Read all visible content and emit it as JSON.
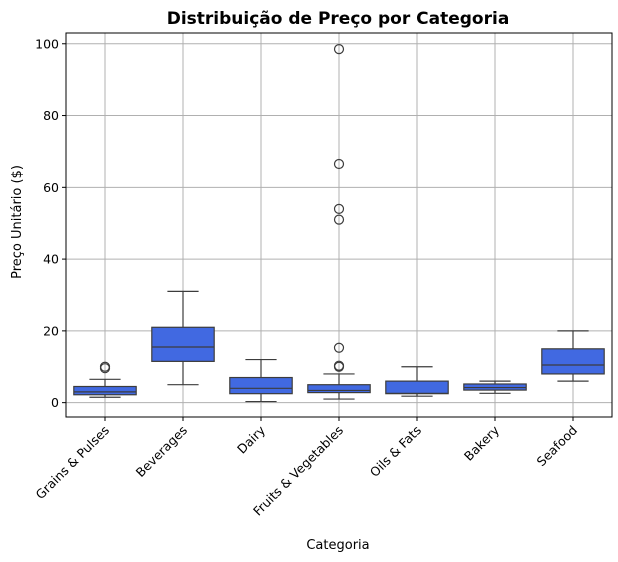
{
  "chart_data": {
    "type": "box",
    "title": "Distribuição de Preço por Categoria",
    "xlabel": "Categoria",
    "ylabel": "Preço Unitário ($)",
    "ylim": [
      -4,
      103
    ],
    "yticks": [
      0,
      20,
      40,
      60,
      80,
      100
    ],
    "grid": true,
    "box_color": "#4169E1",
    "categories": [
      "Grains & Pulses",
      "Beverages",
      "Dairy",
      "Fruits & Vegetables",
      "Oils & Fats",
      "Bakery",
      "Seafood"
    ],
    "boxes": [
      {
        "category": "Grains & Pulses",
        "whisker_low": 1.5,
        "q1": 2.2,
        "median": 3.0,
        "q3": 4.5,
        "whisker_high": 6.5,
        "outliers": [
          9.6,
          10.0
        ]
      },
      {
        "category": "Beverages",
        "whisker_low": 5.0,
        "q1": 11.5,
        "median": 15.5,
        "q3": 21.0,
        "whisker_high": 31.0,
        "outliers": []
      },
      {
        "category": "Dairy",
        "whisker_low": 0.3,
        "q1": 2.5,
        "median": 4.0,
        "q3": 7.0,
        "whisker_high": 12.0,
        "outliers": []
      },
      {
        "category": "Fruits & Vegetables",
        "whisker_low": 1.0,
        "q1": 2.8,
        "median": 3.4,
        "q3": 5.0,
        "whisker_high": 8.0,
        "outliers": [
          10.0,
          10.3,
          15.3,
          51.0,
          54.0,
          66.5,
          98.5
        ]
      },
      {
        "category": "Oils & Fats",
        "whisker_low": 1.8,
        "q1": 2.5,
        "median": 2.6,
        "q3": 6.0,
        "whisker_high": 10.0,
        "outliers": []
      },
      {
        "category": "Bakery",
        "whisker_low": 2.6,
        "q1": 3.5,
        "median": 4.2,
        "q3": 5.2,
        "whisker_high": 6.0,
        "outliers": []
      },
      {
        "category": "Seafood",
        "whisker_low": 6.0,
        "q1": 8.0,
        "median": 10.5,
        "q3": 15.0,
        "whisker_high": 20.0,
        "outliers": []
      }
    ]
  }
}
